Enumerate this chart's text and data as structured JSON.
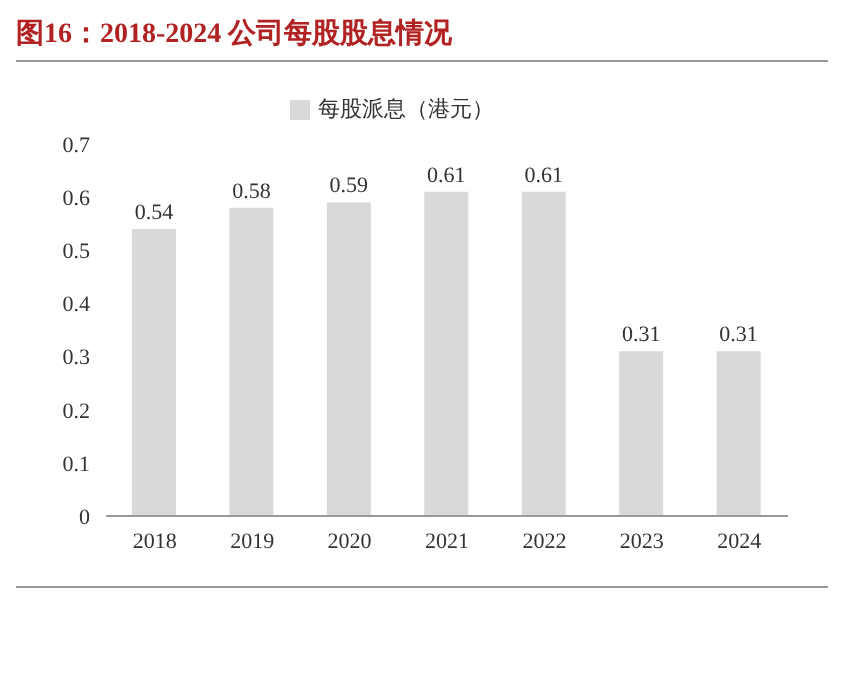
{
  "chart_data": {
    "type": "bar",
    "title": "图16：2018-2024 公司每股股息情况",
    "categories": [
      "2018",
      "2019",
      "2020",
      "2021",
      "2022",
      "2023",
      "2024"
    ],
    "series": [
      {
        "name": "每股派息（港元）",
        "color": "#d9d9d9",
        "values": [
          0.54,
          0.58,
          0.59,
          0.61,
          0.61,
          0.31,
          0.31
        ]
      }
    ],
    "ylim": [
      0,
      0.7
    ],
    "yticks": [
      0,
      0.1,
      0.2,
      0.3,
      0.4,
      0.5,
      0.6,
      0.7
    ],
    "grid": false,
    "legend": "top",
    "data_labels": true
  }
}
